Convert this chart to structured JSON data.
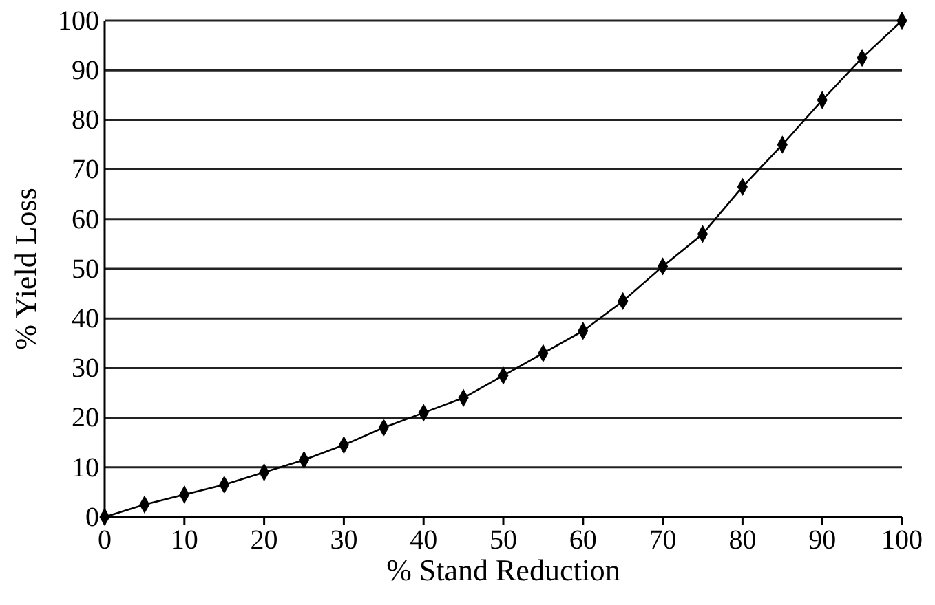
{
  "chart_data": {
    "type": "line",
    "xlabel": "% Stand Reduction",
    "ylabel": "% Yield Loss",
    "x": [
      0,
      5,
      10,
      15,
      20,
      25,
      30,
      35,
      40,
      45,
      50,
      55,
      60,
      65,
      70,
      75,
      80,
      85,
      90,
      95,
      100
    ],
    "series": [
      {
        "color": "#000000",
        "values": [
          0,
          2.5,
          4.5,
          6.5,
          9,
          11.5,
          14.5,
          18,
          21,
          24,
          28.5,
          33,
          37.5,
          43.5,
          50.5,
          57,
          66.5,
          75,
          84,
          92.5,
          100
        ]
      }
    ],
    "xlim": [
      0,
      100
    ],
    "xticks": [
      0,
      10,
      20,
      30,
      40,
      50,
      60,
      70,
      80,
      90,
      100
    ],
    "ylim": [
      0,
      100
    ],
    "yticks": [
      0,
      10,
      20,
      30,
      40,
      50,
      60,
      70,
      80,
      90,
      100
    ],
    "grid": "y",
    "marker": "diamond",
    "line_style": "solid"
  }
}
